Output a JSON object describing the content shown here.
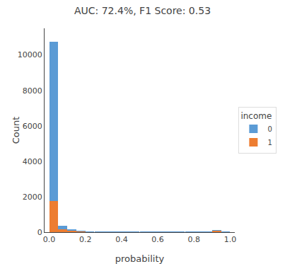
{
  "chart_data": {
    "type": "bar",
    "title": "AUC: 72.4%, F1 Score: 0.53",
    "xlabel": "probability",
    "ylabel": "Count",
    "stacked": true,
    "legend": "right",
    "legend_title": "income",
    "grid": false,
    "x": [
      0.025,
      0.075,
      0.125,
      0.175,
      0.225,
      0.275,
      0.325,
      0.375,
      0.425,
      0.475,
      0.525,
      0.575,
      0.625,
      0.675,
      0.725,
      0.775,
      0.825,
      0.875,
      0.925,
      0.975
    ],
    "series": [
      {
        "name": "1",
        "color": "#ed7d31",
        "values": [
          1750,
          160,
          80,
          40,
          10,
          5,
          3,
          2,
          2,
          2,
          2,
          2,
          2,
          2,
          2,
          2,
          2,
          2,
          100,
          2
        ]
      },
      {
        "name": "0",
        "color": "#5b9bd5",
        "values": [
          9000,
          200,
          60,
          20,
          8,
          4,
          2,
          2,
          2,
          2,
          2,
          2,
          2,
          2,
          2,
          2,
          2,
          2,
          2,
          2
        ]
      }
    ],
    "xlim": [
      -0.025,
      1.025
    ],
    "xticks": [
      {
        "value": 0,
        "label": "0.0"
      },
      0.2,
      0.4,
      0.6,
      0.8,
      {
        "value": 1,
        "label": "1.0"
      }
    ],
    "ylim": [
      0,
      11500
    ],
    "yticks": [
      0,
      2000,
      4000,
      6000,
      8000,
      10000
    ]
  }
}
